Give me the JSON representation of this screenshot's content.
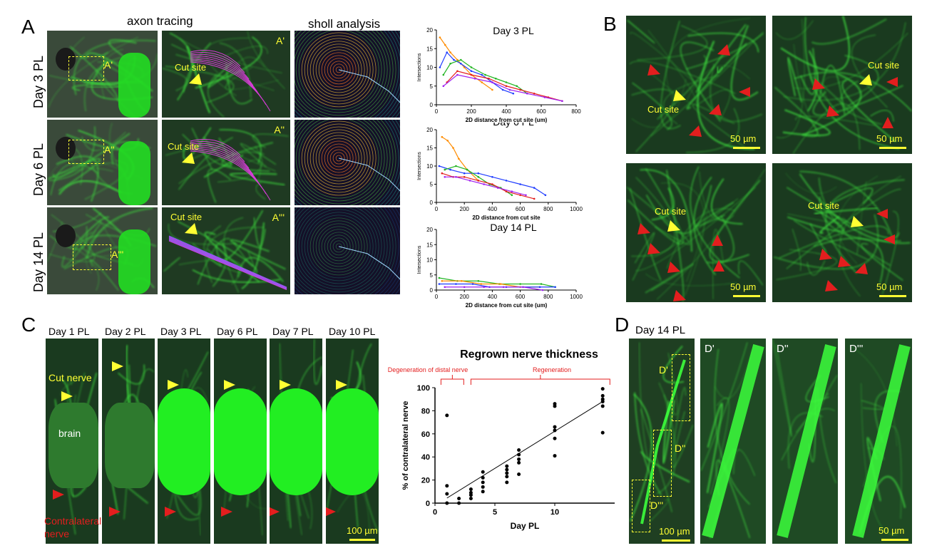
{
  "panels": {
    "A": {
      "letter": "A",
      "col_headers": [
        "axon tracing",
        "sholl analysis"
      ],
      "rows": [
        "Day 3 PL",
        "Day 6  PL",
        "Day 14  PL"
      ],
      "inset_labels": [
        "A'",
        "A''",
        "A'''"
      ],
      "cut_site": "Cut site"
    },
    "B": {
      "letter": "B",
      "cut_site": "Cut site",
      "scale": "50 µm"
    },
    "C": {
      "letter": "C",
      "days": [
        "Day 1 PL",
        "Day 2 PL",
        "Day 3 PL",
        "Day 6 PL",
        "Day 7 PL",
        "Day 10 PL"
      ],
      "cut_nerve": "Cut nerve",
      "brain": "brain",
      "contralateral": "Contralateral nerve",
      "scale": "100 µm"
    },
    "D": {
      "letter": "D",
      "day": "Day 14 PL",
      "insets": [
        "D'",
        "D''",
        "D'''"
      ],
      "scale_main": "100 µm",
      "scale_zoom": "50 µm"
    }
  },
  "colors": {
    "green": "#22ff22",
    "yellow": "#ffff33",
    "red": "#e31e1e",
    "magenta": "#d83cd8"
  },
  "chart_data": [
    {
      "type": "scatter",
      "title": "Day 3 PL",
      "xlabel": "2D distance from cut site (um)",
      "ylabel": "Intersections",
      "xlim": [
        0,
        800
      ],
      "ylim": [
        0,
        20
      ],
      "xticks": [
        0,
        200,
        400,
        600,
        800
      ],
      "yticks": [
        0,
        5,
        10,
        15,
        20
      ],
      "series": [
        {
          "color": "#ff8c00",
          "x": [
            20,
            50,
            80,
            120,
            160,
            200,
            260,
            320
          ],
          "y": [
            18,
            16,
            14,
            12,
            10,
            8,
            6,
            4
          ]
        },
        {
          "color": "#1f3cff",
          "x": [
            20,
            60,
            100,
            140,
            200,
            260,
            320,
            380,
            440
          ],
          "y": [
            10,
            14,
            12,
            11,
            9,
            8,
            6,
            4,
            3
          ]
        },
        {
          "color": "#22b522",
          "x": [
            40,
            80,
            140,
            200,
            280,
            340,
            400,
            460,
            520
          ],
          "y": [
            8,
            11,
            12,
            10,
            8,
            7,
            6,
            5,
            3
          ]
        },
        {
          "color": "#e31e1e",
          "x": [
            60,
            120,
            200,
            300,
            400,
            480,
            560,
            640,
            720
          ],
          "y": [
            6,
            9,
            8,
            7,
            5,
            4,
            3,
            2,
            1
          ]
        },
        {
          "color": "#a020f0",
          "x": [
            40,
            120,
            220,
            320,
            420,
            520,
            620,
            720
          ],
          "y": [
            5,
            8,
            7,
            6,
            4,
            3,
            2,
            1
          ]
        }
      ]
    },
    {
      "type": "scatter",
      "title": "Day 6 PL",
      "xlabel": "2D distance from cut site",
      "ylabel": "Intersections",
      "xlim": [
        0,
        1000
      ],
      "ylim": [
        0,
        20
      ],
      "xticks": [
        0,
        200,
        400,
        600,
        800,
        1000
      ],
      "yticks": [
        0,
        5,
        10,
        15,
        20
      ],
      "series": [
        {
          "color": "#ff8c00",
          "x": [
            40,
            80,
            120,
            160,
            220,
            300
          ],
          "y": [
            18,
            17,
            15,
            12,
            9,
            6
          ]
        },
        {
          "color": "#1f3cff",
          "x": [
            20,
            100,
            200,
            300,
            400,
            500,
            600,
            700,
            780
          ],
          "y": [
            10,
            9,
            8,
            8,
            7,
            6,
            5,
            4,
            2
          ]
        },
        {
          "color": "#22b522",
          "x": [
            60,
            140,
            220,
            300,
            380,
            460,
            540
          ],
          "y": [
            9,
            10,
            9,
            7,
            5,
            4,
            2
          ]
        },
        {
          "color": "#e31e1e",
          "x": [
            40,
            120,
            200,
            300,
            400,
            500,
            600,
            700
          ],
          "y": [
            8,
            7,
            7,
            6,
            5,
            3,
            2,
            1
          ]
        },
        {
          "color": "#a020f0",
          "x": [
            60,
            140,
            240,
            340,
            440,
            540,
            640
          ],
          "y": [
            7,
            7,
            6,
            5,
            4,
            3,
            2
          ]
        }
      ]
    },
    {
      "type": "scatter",
      "title": "Day 14 PL",
      "xlabel": "2D distance from cut site (um)",
      "ylabel": "Intersections",
      "xlim": [
        0,
        1000
      ],
      "ylim": [
        0,
        20
      ],
      "xticks": [
        0,
        200,
        400,
        600,
        800,
        1000
      ],
      "yticks": [
        0,
        5,
        10,
        15,
        20
      ],
      "series": [
        {
          "color": "#22b522",
          "x": [
            20,
            150,
            300,
            450,
            600,
            750,
            850
          ],
          "y": [
            4,
            3,
            3,
            2,
            2,
            2,
            1
          ]
        },
        {
          "color": "#ff8c00",
          "x": [
            40,
            180,
            320,
            460,
            600,
            740
          ],
          "y": [
            3,
            3,
            2,
            2,
            1,
            1
          ]
        },
        {
          "color": "#1f3cff",
          "x": [
            20,
            140,
            260,
            380,
            500,
            620,
            740,
            850
          ],
          "y": [
            2,
            2,
            2,
            1,
            1,
            1,
            1,
            1
          ]
        },
        {
          "color": "#a020f0",
          "x": [
            60,
            200,
            340,
            480,
            620,
            760
          ],
          "y": [
            1,
            1,
            1,
            1,
            1,
            0
          ]
        }
      ]
    },
    {
      "type": "scatter",
      "title": "Regrown nerve thickness",
      "xlabel": "Day PL",
      "ylabel": "% of contralateral nerve",
      "xlim": [
        0,
        15
      ],
      "ylim": [
        0,
        100
      ],
      "xticks": [
        0,
        5,
        10
      ],
      "yticks": [
        0,
        20,
        40,
        60,
        80,
        100
      ],
      "annotations": [
        "Degeneration of distal nerve",
        "Regeneration"
      ],
      "points": {
        "x": [
          1,
          1,
          1,
          1,
          2,
          2,
          3,
          3,
          3,
          3,
          4,
          4,
          4,
          4,
          4,
          6,
          6,
          6,
          6,
          6,
          7,
          7,
          7,
          7,
          7,
          10,
          10,
          10,
          10,
          10,
          10,
          14,
          14,
          14,
          14,
          14,
          14
        ],
        "y": [
          76,
          15,
          8,
          0,
          4,
          0,
          12,
          9,
          7,
          4,
          27,
          22,
          18,
          14,
          10,
          32,
          29,
          26,
          23,
          18,
          46,
          42,
          38,
          35,
          25,
          86,
          84,
          66,
          63,
          56,
          41,
          99,
          93,
          90,
          88,
          84,
          61
        ]
      },
      "fit": {
        "x": [
          0,
          14
        ],
        "y": [
          -2,
          88
        ]
      }
    }
  ]
}
